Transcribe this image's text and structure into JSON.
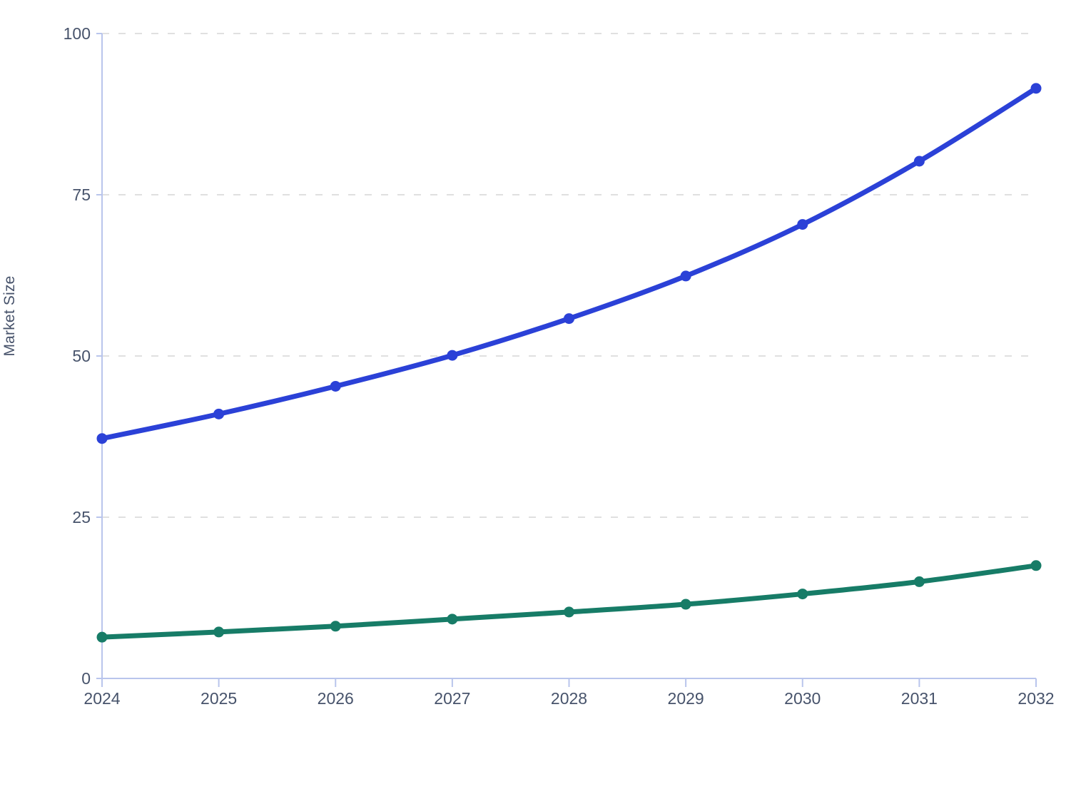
{
  "chart_data": {
    "type": "line",
    "title": "",
    "xlabel": "",
    "ylabel": "Market Size",
    "x": [
      2024,
      2025,
      2026,
      2027,
      2028,
      2029,
      2030,
      2031,
      2032
    ],
    "series": [
      {
        "id": "blue-series",
        "color": "#2b41d7",
        "values": [
          37.2,
          41.0,
          45.3,
          50.1,
          55.8,
          62.4,
          70.4,
          80.2,
          91.5
        ]
      },
      {
        "id": "teal-series",
        "color": "#177c67",
        "values": [
          6.4,
          7.2,
          8.1,
          9.2,
          10.3,
          11.5,
          13.1,
          15.0,
          17.5
        ]
      }
    ],
    "ylim": [
      0,
      100
    ],
    "yticks": [
      0,
      25,
      50,
      75,
      100
    ],
    "xticks": [
      "2024",
      "2025",
      "2026",
      "2027",
      "2028",
      "2029",
      "2030",
      "2031",
      "2032"
    ],
    "grid": "horizontal-dashed",
    "legend": "none"
  },
  "style": {
    "background": "#ffffff",
    "axis_color": "#b9c5ec",
    "grid_color": "#e0e0e0",
    "tick_label_color": "#47536b",
    "line_width": 7,
    "point_radius": 7.5
  }
}
